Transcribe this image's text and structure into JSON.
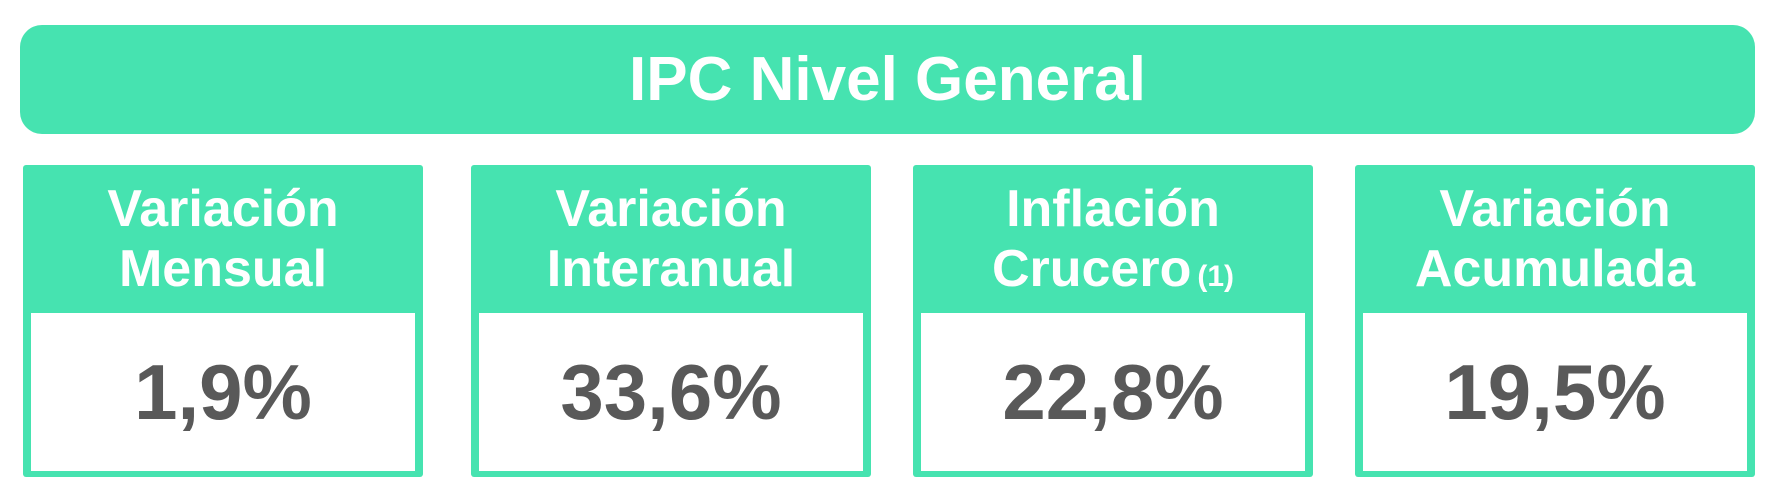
{
  "header": {
    "title": "IPC Nivel General"
  },
  "cards": [
    {
      "title": [
        "Variación",
        "Mensual"
      ],
      "value": "1,9%"
    },
    {
      "title": [
        "Variación",
        "Interanual"
      ],
      "value": "33,6%"
    },
    {
      "title": [
        "Inflación",
        "Crucero"
      ],
      "note": "(1)",
      "value": "22,8%"
    },
    {
      "title": [
        "Variación",
        "Acumulada"
      ],
      "value": "19,5%"
    }
  ]
}
